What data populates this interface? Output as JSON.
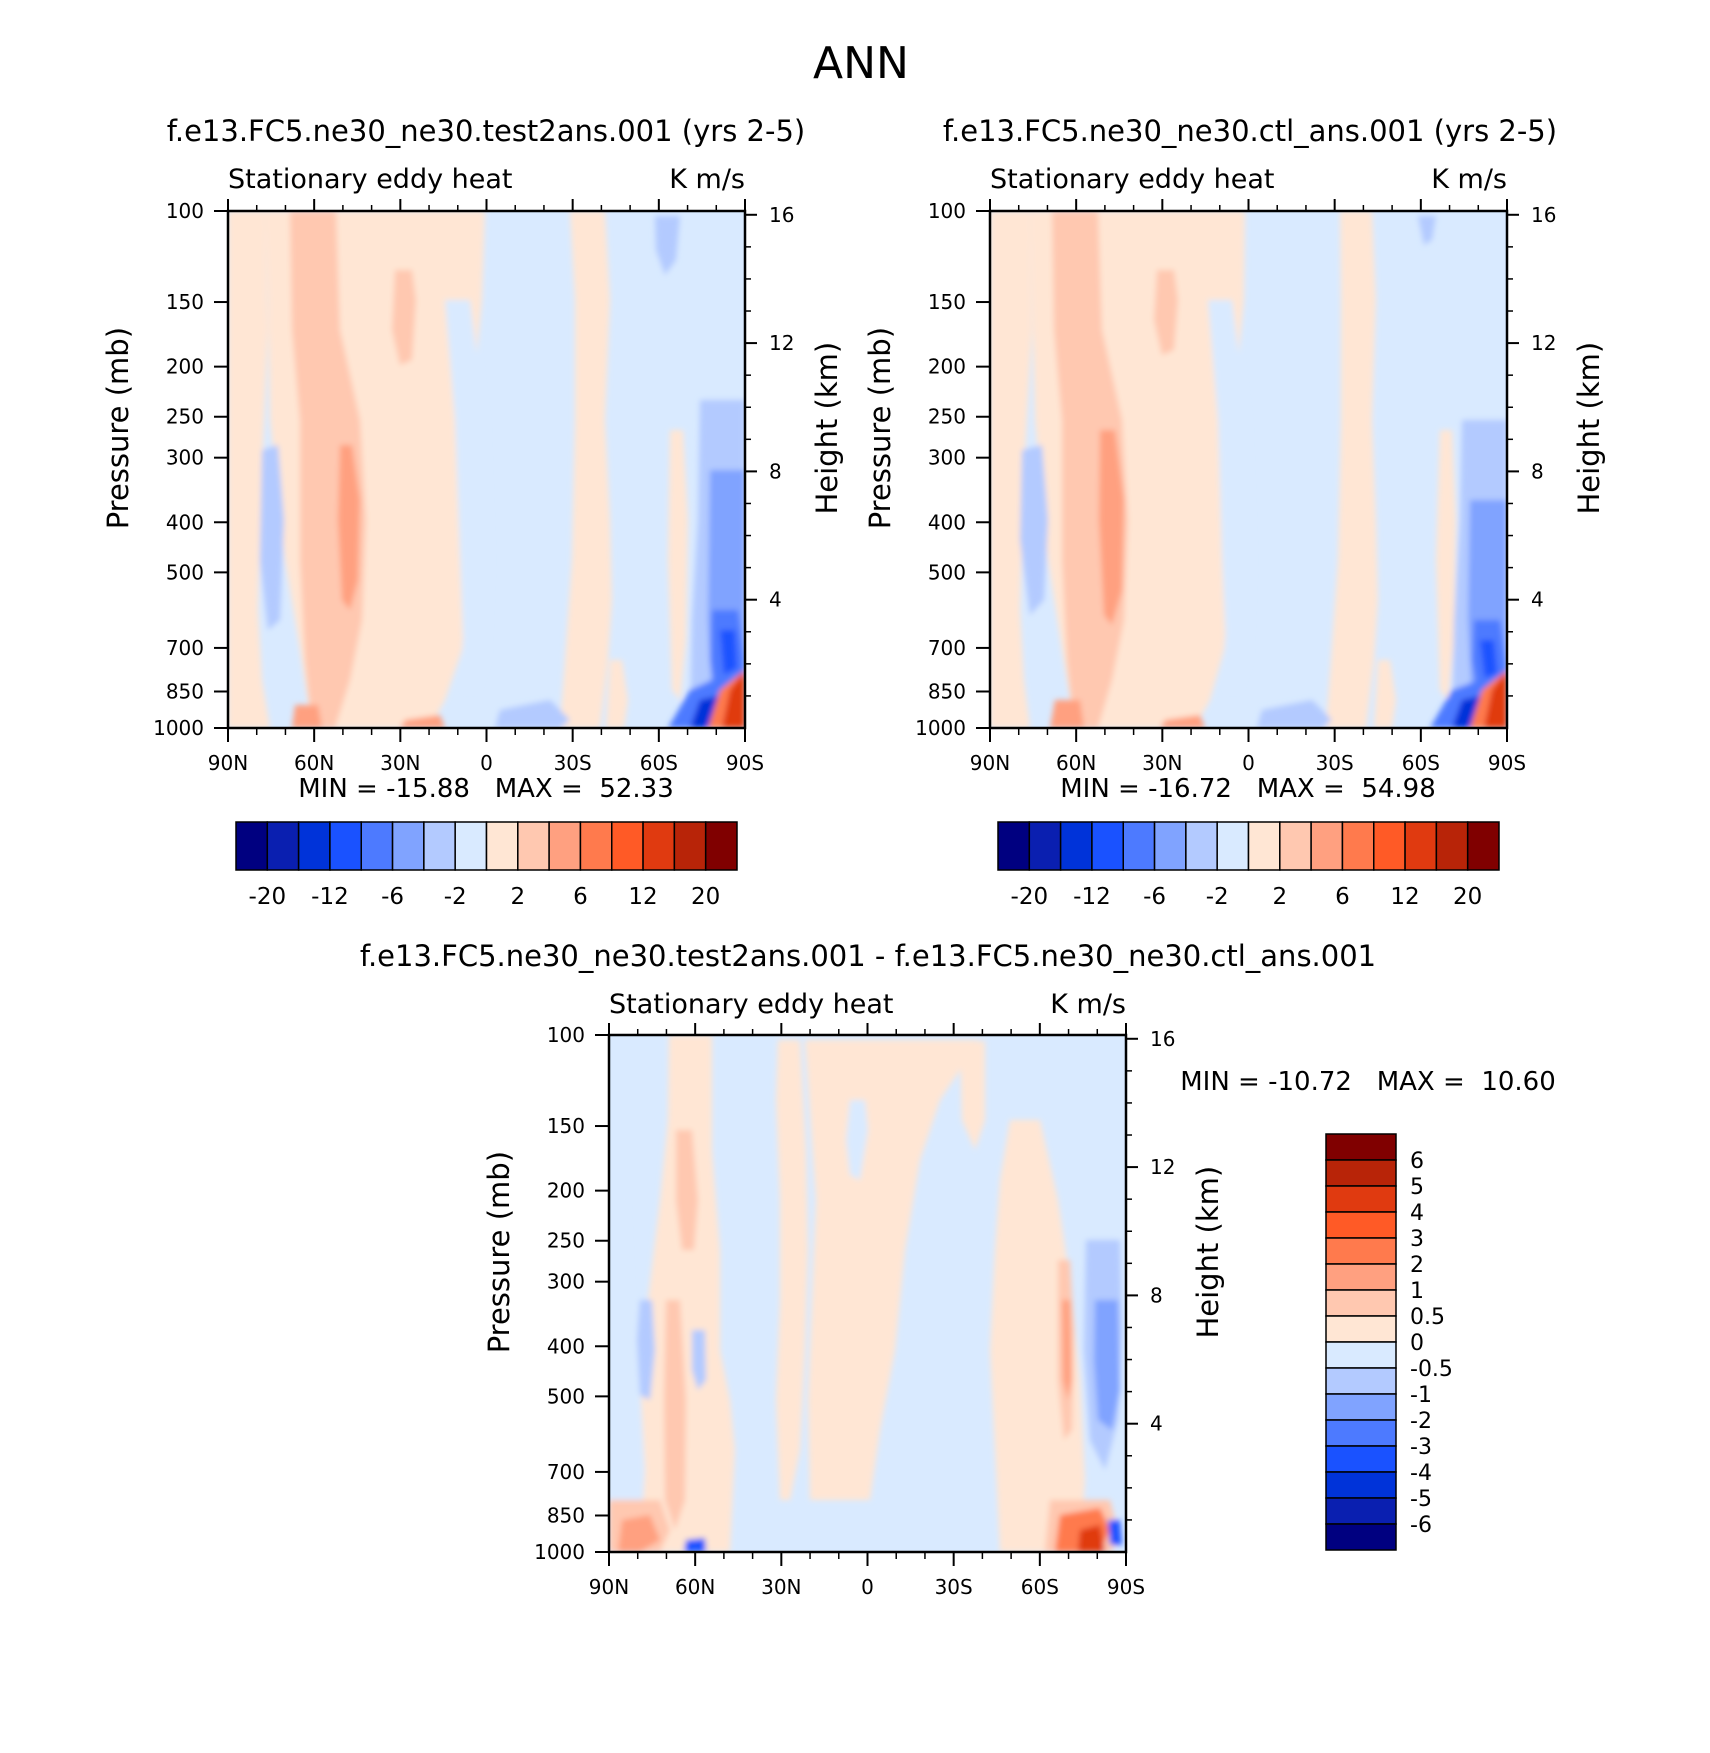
{
  "figure_title": "ANN",
  "panels": [
    {
      "id": "p1",
      "case_title": "f.e13.FC5.ne30_ne30.test2ans.001 (yrs 2-5)",
      "var_label": "Stationary eddy heat",
      "units": "K m/s",
      "min_max": "MIN = -15.88   MAX =  52.33"
    },
    {
      "id": "p2",
      "case_title": "f.e13.FC5.ne30_ne30.ctl_ans.001 (yrs 2-5)",
      "var_label": "Stationary eddy heat",
      "units": "K m/s",
      "min_max": "MIN = -16.72   MAX =  54.98"
    },
    {
      "id": "p3",
      "case_title": "f.e13.FC5.ne30_ne30.test2ans.001 - f.e13.FC5.ne30_ne30.ctl_ans.001",
      "var_label": "Stationary eddy heat",
      "units": "K m/s",
      "min_max": "MIN = -10.72   MAX =  10.60"
    }
  ],
  "axes": {
    "ylabel_left": "Pressure (mb)",
    "ylabel_right": "Height (km)",
    "pressure_ticks": [
      "100",
      "150",
      "200",
      "250",
      "300",
      "400",
      "500",
      "700",
      "850",
      "1000"
    ],
    "height_ticks": [
      "16",
      "12",
      "8",
      "4"
    ],
    "lat_ticks": [
      "90N",
      "60N",
      "30N",
      "0",
      "30S",
      "60S",
      "90S"
    ]
  },
  "colorbar_top_labels": [
    "-20",
    "-12",
    "-6",
    "-2",
    "2",
    "6",
    "12",
    "20"
  ],
  "colorbar_diff_labels": [
    "6",
    "5",
    "4",
    "3",
    "2",
    "1",
    "0.5",
    "0",
    "-0.5",
    "-1",
    "-2",
    "-3",
    "-4",
    "-5",
    "-6"
  ],
  "colors": {
    "top_scale": [
      "#000080",
      "#0a1fb0",
      "#0033d9",
      "#1a52ff",
      "#4d7aff",
      "#80a3ff",
      "#b3caff",
      "#d9eaff",
      "#ffe6d4",
      "#ffc8b0",
      "#ffa080",
      "#ff7a4d",
      "#ff5a26",
      "#e03a10",
      "#b82408",
      "#800000"
    ],
    "diff_scale": [
      "#800000",
      "#b82408",
      "#e03a10",
      "#ff5a26",
      "#ff7a4d",
      "#ffa080",
      "#ffc8b0",
      "#ffe6d4",
      "#d9eaff",
      "#b3caff",
      "#80a3ff",
      "#4d7aff",
      "#1a52ff",
      "#0033d9",
      "#0a1fb0",
      "#000080"
    ]
  },
  "chart_data": [
    {
      "type": "heatmap",
      "title": "f.e13.FC5.ne30_ne30.test2ans.001 (yrs 2-5)",
      "xlabel": "",
      "ylabel": "Pressure (mb)",
      "x_ticks": [
        "90N",
        "60N",
        "30N",
        "0",
        "30S",
        "60S",
        "90S"
      ],
      "y_ticks": [
        100,
        150,
        200,
        250,
        300,
        400,
        500,
        700,
        850,
        1000
      ],
      "min": -15.88,
      "max": 52.33
    },
    {
      "type": "heatmap",
      "title": "f.e13.FC5.ne30_ne30.ctl_ans.001 (yrs 2-5)",
      "xlabel": "",
      "ylabel": "Pressure (mb)",
      "x_ticks": [
        "90N",
        "60N",
        "30N",
        "0",
        "30S",
        "60S",
        "90S"
      ],
      "y_ticks": [
        100,
        150,
        200,
        250,
        300,
        400,
        500,
        700,
        850,
        1000
      ],
      "min": -16.72,
      "max": 54.98
    },
    {
      "type": "heatmap",
      "title": "f.e13.FC5.ne30_ne30.test2ans.001 - f.e13.FC5.ne30_ne30.ctl_ans.001",
      "xlabel": "",
      "ylabel": "Pressure (mb)",
      "x_ticks": [
        "90N",
        "60N",
        "30N",
        "0",
        "30S",
        "60S",
        "90S"
      ],
      "y_ticks": [
        100,
        150,
        200,
        250,
        300,
        400,
        500,
        700,
        850,
        1000
      ],
      "min": -10.72,
      "max": 10.6
    }
  ]
}
